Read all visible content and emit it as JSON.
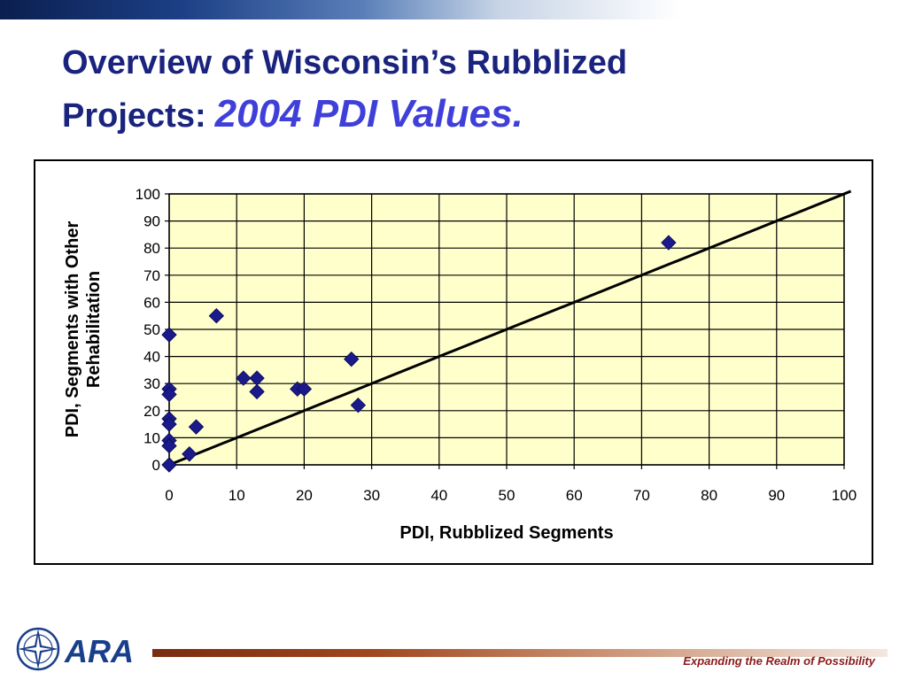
{
  "slide": {
    "title_line1": "Overview of Wisconsin’s Rubblized",
    "title_line2": "Projects:",
    "title_accent": "2004 PDI Values.",
    "tagline": "Expanding the Realm of Possibility",
    "logo_text": "ARA"
  },
  "colors": {
    "title": "#1a237e",
    "title_accent": "#3f3fd9",
    "plot_background": "#ffffcc",
    "marker": "#1a1a8c",
    "tagline": "#8b1a1a"
  },
  "chart_data": {
    "type": "scatter",
    "xlabel": "PDI, Rubblized Segments",
    "ylabel": "PDI, Segments with Other Rehabilitation",
    "ylabel_lines": [
      "PDI, Segments with Other",
      "Rehabilitation"
    ],
    "xlim": [
      0,
      100
    ],
    "ylim": [
      0,
      100
    ],
    "xticks": [
      0,
      10,
      20,
      30,
      40,
      50,
      60,
      70,
      80,
      90,
      100
    ],
    "yticks": [
      0,
      10,
      20,
      30,
      40,
      50,
      60,
      70,
      80,
      90,
      100
    ],
    "grid": true,
    "legend": "none",
    "marker": "diamond",
    "points": [
      {
        "x": 0,
        "y": 48
      },
      {
        "x": 0,
        "y": 28
      },
      {
        "x": 0,
        "y": 26
      },
      {
        "x": 0,
        "y": 17
      },
      {
        "x": 0,
        "y": 15
      },
      {
        "x": 0,
        "y": 9
      },
      {
        "x": 0,
        "y": 7
      },
      {
        "x": 0,
        "y": 0
      },
      {
        "x": 3,
        "y": 4
      },
      {
        "x": 4,
        "y": 14
      },
      {
        "x": 7,
        "y": 55
      },
      {
        "x": 11,
        "y": 32
      },
      {
        "x": 13,
        "y": 32
      },
      {
        "x": 13,
        "y": 27
      },
      {
        "x": 19,
        "y": 28
      },
      {
        "x": 20,
        "y": 28
      },
      {
        "x": 27,
        "y": 39
      },
      {
        "x": 28,
        "y": 22
      },
      {
        "x": 74,
        "y": 82
      }
    ],
    "reference_line": {
      "type": "equality",
      "from": [
        0,
        0
      ],
      "to": [
        101,
        101
      ]
    }
  }
}
